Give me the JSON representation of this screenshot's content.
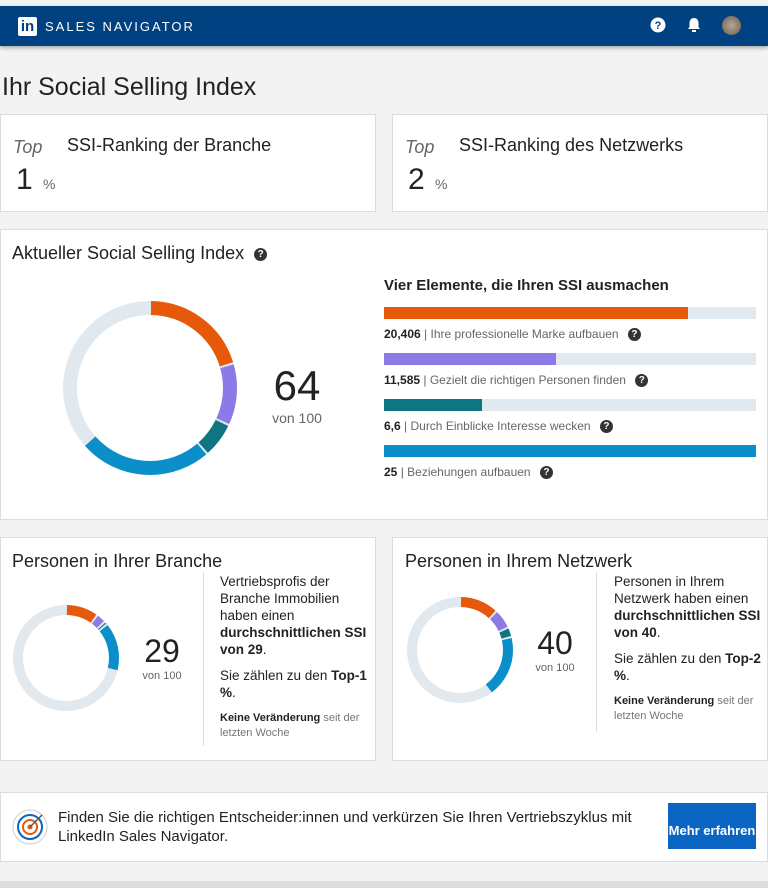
{
  "header": {
    "logo": "in",
    "brand": "SALES NAVIGATOR",
    "icons": [
      "help-icon",
      "bell-icon",
      "avatar"
    ]
  },
  "page_title": "Ihr Social Selling Index",
  "rankings": [
    {
      "top": "Top",
      "title": "SSI-Ranking der Branche",
      "value": "1",
      "unit": "%"
    },
    {
      "top": "Top",
      "title": "SSI-Ranking des Netzwerks",
      "value": "2",
      "unit": "%"
    }
  ],
  "ssi": {
    "title": "Aktueller Social Selling Index",
    "score": "64",
    "of": "von 100",
    "elements_title": "Vier Elemente, die Ihren SSI ausmachen",
    "elements": [
      {
        "value": "20,406",
        "label": "Ihre professionelle Marke aufbauen",
        "score": 20.406,
        "max": 25,
        "color": "#e7590a"
      },
      {
        "value": "11,585",
        "label": "Gezielt die richtigen Personen finden",
        "score": 11.585,
        "max": 25,
        "color": "#8c7ae6"
      },
      {
        "value": "6,6",
        "label": "Durch Einblicke Interesse wecken",
        "score": 6.6,
        "max": 25,
        "color": "#0f7582"
      },
      {
        "value": "25",
        "label": "Beziehungen aufbauen",
        "score": 25,
        "max": 25,
        "color": "#0a8fca"
      }
    ]
  },
  "branche": {
    "title": "Personen in Ihrer Branche",
    "score": "29",
    "of": "von 100",
    "segments": [
      10,
      3,
      1,
      15
    ],
    "text1": "Vertriebsprofis der Branche Immobilien haben einen ",
    "bold1": "durchschnittlichen SSI von 29",
    "text2": "Sie zählen zu den ",
    "bold2": "Top-1 %",
    "change_bold": "Keine Veränderung",
    "change": " seit der letzten Woche"
  },
  "netzwerk": {
    "title": "Personen in Ihrem Netzwerk",
    "score": "40",
    "of": "von 100",
    "segments": [
      12,
      6,
      3,
      19
    ],
    "text1": "Personen in Ihrem Netzwerk haben einen ",
    "bold1": "durchschnittlichen SSI von 40",
    "text2": "Sie zählen zu den ",
    "bold2": "Top-2 %",
    "change_bold": "Keine Veränderung",
    "change": " seit der letzten Woche"
  },
  "promo": {
    "text": "Finden Sie die richtigen Entscheider:innen und verkürzen Sie Ihren Vertriebszyklus mit LinkedIn Sales Navigator.",
    "button": "Mehr erfahren",
    "icon": "target-icon"
  }
}
